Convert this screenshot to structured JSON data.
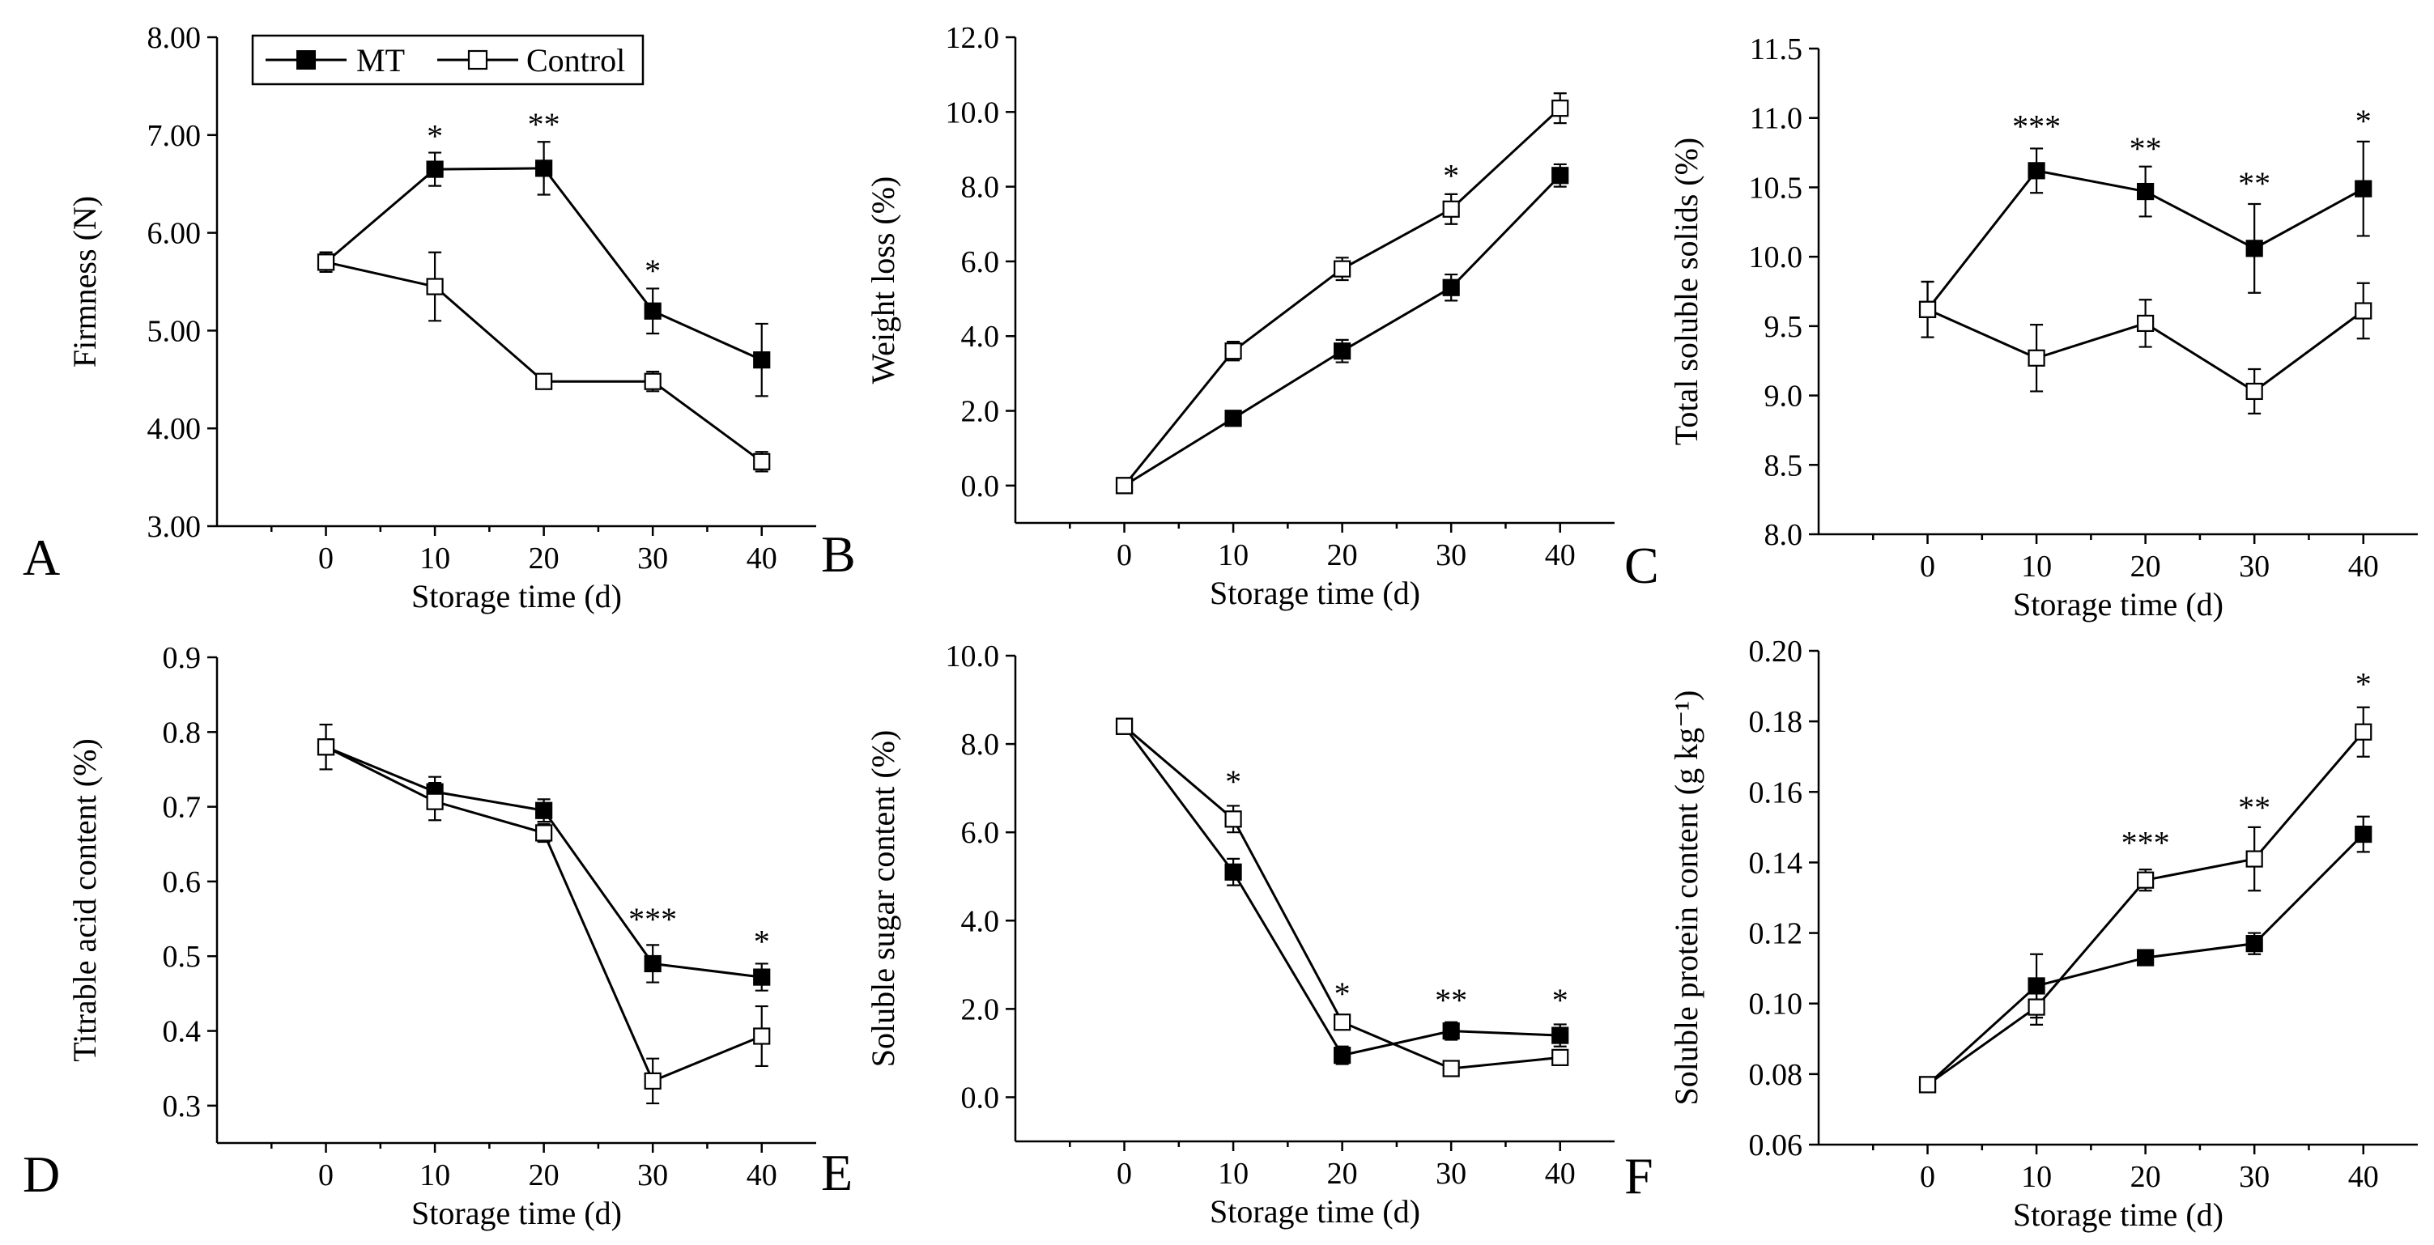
{
  "legend": {
    "mt_label": "MT",
    "control_label": "Control"
  },
  "chart_data": [
    {
      "id": "A",
      "type": "line",
      "letter": "A",
      "xlabel": "Storage time (d)",
      "ylabel": "Firmness (N)",
      "x": [
        0,
        10,
        20,
        30,
        40
      ],
      "xlim": [
        -10,
        45
      ],
      "ylim": [
        3,
        8
      ],
      "yticks": [
        3,
        4,
        5,
        6,
        7,
        8
      ],
      "ydecimals": 2,
      "series": [
        {
          "name": "MT",
          "marker": "filled",
          "values": [
            5.7,
            6.65,
            6.66,
            5.2,
            4.7
          ],
          "errors": [
            0.1,
            0.17,
            0.27,
            0.23,
            0.37
          ]
        },
        {
          "name": "Control",
          "marker": "open",
          "values": [
            5.7,
            5.45,
            4.48,
            4.48,
            3.66
          ],
          "errors": [
            0.1,
            0.35,
            0.07,
            0.1,
            0.1
          ]
        }
      ],
      "annotations": [
        {
          "x": 10,
          "y": 6.88,
          "text": "*"
        },
        {
          "x": 20,
          "y": 7.0,
          "text": "**"
        },
        {
          "x": 30,
          "y": 5.5,
          "text": "*"
        }
      ]
    },
    {
      "id": "B",
      "type": "line",
      "letter": "B",
      "xlabel": "Storage time (d)",
      "ylabel": "Weight loss (%)",
      "x": [
        0,
        10,
        20,
        30,
        40
      ],
      "xlim": [
        -10,
        45
      ],
      "ylim": [
        -1,
        12
      ],
      "yticks": [
        0,
        2,
        4,
        6,
        8,
        10,
        12
      ],
      "ydecimals": 1,
      "series": [
        {
          "name": "MT",
          "marker": "filled",
          "values": [
            0.0,
            1.8,
            3.6,
            5.3,
            8.3
          ],
          "errors": [
            0.05,
            0.15,
            0.3,
            0.35,
            0.3
          ]
        },
        {
          "name": "Control",
          "marker": "open",
          "values": [
            0.0,
            3.6,
            5.8,
            7.4,
            10.1
          ],
          "errors": [
            0.05,
            0.25,
            0.3,
            0.4,
            0.4
          ]
        }
      ],
      "annotations": [
        {
          "x": 30,
          "y": 8.0,
          "text": "*"
        }
      ]
    },
    {
      "id": "C",
      "type": "line",
      "letter": "C",
      "xlabel": "Storage time (d)",
      "ylabel": "Total soluble solids (%)",
      "x": [
        0,
        10,
        20,
        30,
        40
      ],
      "xlim": [
        -10,
        45
      ],
      "ylim": [
        8,
        11.5
      ],
      "yticks": [
        8,
        8.5,
        9,
        9.5,
        10,
        10.5,
        11,
        11.5
      ],
      "ydecimals": 1,
      "series": [
        {
          "name": "MT",
          "marker": "filled",
          "values": [
            9.62,
            10.62,
            10.47,
            10.06,
            10.49
          ],
          "errors": [
            0.2,
            0.16,
            0.18,
            0.32,
            0.34
          ]
        },
        {
          "name": "Control",
          "marker": "open",
          "values": [
            9.62,
            9.27,
            9.52,
            9.03,
            9.61
          ],
          "errors": [
            0.2,
            0.24,
            0.17,
            0.16,
            0.2
          ]
        }
      ],
      "annotations": [
        {
          "x": 10,
          "y": 10.86,
          "text": "***"
        },
        {
          "x": 20,
          "y": 10.7,
          "text": "**"
        },
        {
          "x": 30,
          "y": 10.45,
          "text": "**"
        },
        {
          "x": 40,
          "y": 10.9,
          "text": "*"
        }
      ]
    },
    {
      "id": "D",
      "type": "line",
      "letter": "D",
      "xlabel": "Storage time (d)",
      "ylabel": "Titrable acid content (%)",
      "x": [
        0,
        10,
        20,
        30,
        40
      ],
      "xlim": [
        -10,
        45
      ],
      "ylim": [
        0.25,
        0.9
      ],
      "yticks": [
        0.3,
        0.4,
        0.5,
        0.6,
        0.7,
        0.8,
        0.9
      ],
      "ydecimals": 1,
      "series": [
        {
          "name": "MT",
          "marker": "filled",
          "values": [
            0.78,
            0.72,
            0.695,
            0.49,
            0.472
          ],
          "errors": [
            0.03,
            0.02,
            0.015,
            0.025,
            0.018
          ]
        },
        {
          "name": "Control",
          "marker": "open",
          "values": [
            0.78,
            0.707,
            0.665,
            0.333,
            0.393
          ],
          "errors": [
            0.03,
            0.025,
            0.012,
            0.03,
            0.04
          ]
        }
      ],
      "annotations": [
        {
          "x": 30,
          "y": 0.535,
          "text": "***"
        },
        {
          "x": 40,
          "y": 0.505,
          "text": "*"
        }
      ]
    },
    {
      "id": "E",
      "type": "line",
      "letter": "E",
      "xlabel": "Storage time (d)",
      "ylabel": "Soluble sugar content (%)",
      "x": [
        0,
        10,
        20,
        30,
        40
      ],
      "xlim": [
        -10,
        45
      ],
      "ylim": [
        -1,
        10
      ],
      "yticks": [
        0,
        2,
        4,
        6,
        8,
        10
      ],
      "ydecimals": 1,
      "series": [
        {
          "name": "MT",
          "marker": "filled",
          "values": [
            8.4,
            5.1,
            0.95,
            1.5,
            1.4
          ],
          "errors": [
            0.15,
            0.3,
            0.2,
            0.2,
            0.25
          ]
        },
        {
          "name": "Control",
          "marker": "open",
          "values": [
            8.4,
            6.3,
            1.7,
            0.65,
            0.9
          ],
          "errors": [
            0.15,
            0.3,
            0.15,
            0.1,
            0.12
          ]
        }
      ],
      "annotations": [
        {
          "x": 10,
          "y": 6.9,
          "text": "*"
        },
        {
          "x": 20,
          "y": 2.1,
          "text": "*"
        },
        {
          "x": 30,
          "y": 1.95,
          "text": "**"
        },
        {
          "x": 40,
          "y": 1.95,
          "text": "*"
        }
      ]
    },
    {
      "id": "F",
      "type": "line",
      "letter": "F",
      "xlabel": "Storage time (d)",
      "ylabel": "Soluble protein content (g kg⁻¹)",
      "x": [
        0,
        10,
        20,
        30,
        40
      ],
      "xlim": [
        -10,
        45
      ],
      "ylim": [
        0.06,
        0.2
      ],
      "yticks": [
        0.06,
        0.08,
        0.1,
        0.12,
        0.14,
        0.16,
        0.18,
        0.2
      ],
      "ydecimals": 2,
      "series": [
        {
          "name": "MT",
          "marker": "filled",
          "values": [
            0.077,
            0.105,
            0.113,
            0.117,
            0.148
          ],
          "errors": [
            0.002,
            0.009,
            0.002,
            0.003,
            0.005
          ]
        },
        {
          "name": "Control",
          "marker": "open",
          "values": [
            0.077,
            0.099,
            0.135,
            0.141,
            0.177
          ],
          "errors": [
            0.002,
            0.005,
            0.003,
            0.009,
            0.007
          ]
        }
      ],
      "annotations": [
        {
          "x": 20,
          "y": 0.1425,
          "text": "***"
        },
        {
          "x": 30,
          "y": 0.1525,
          "text": "**"
        },
        {
          "x": 40,
          "y": 0.1875,
          "text": "*"
        }
      ]
    }
  ]
}
